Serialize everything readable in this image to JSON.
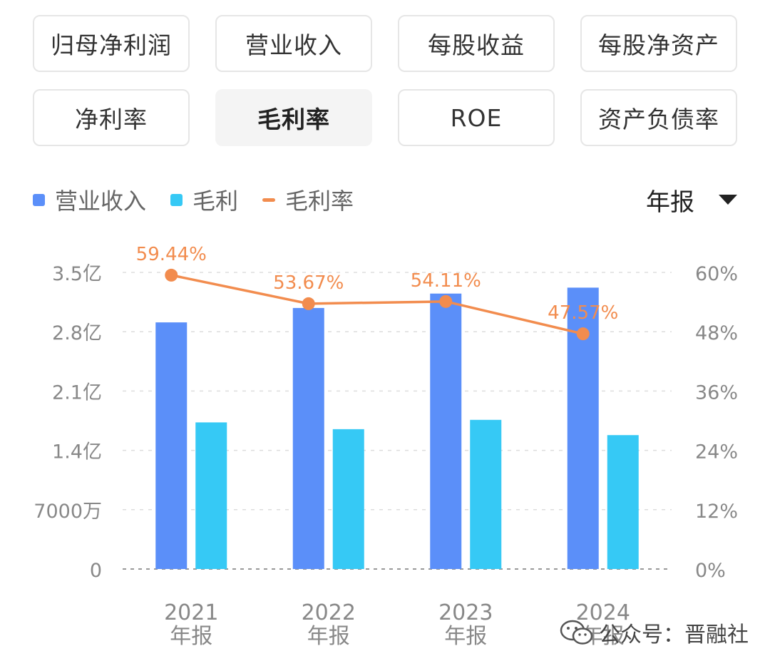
{
  "tabs": [
    {
      "label": "归母净利润",
      "active": false
    },
    {
      "label": "营业收入",
      "active": false
    },
    {
      "label": "每股收益",
      "active": false
    },
    {
      "label": "每股净资产",
      "active": false
    },
    {
      "label": "净利率",
      "active": false
    },
    {
      "label": "毛利率",
      "active": true
    },
    {
      "label": "ROE",
      "active": false
    },
    {
      "label": "资产负债率",
      "active": false
    }
  ],
  "period_selector": {
    "label": "年报",
    "icon": "caret-down-icon"
  },
  "watermark": {
    "text": "公众号：晋融社",
    "icon": "wechat-icon"
  },
  "colors": {
    "revenue": "#5b8ff9",
    "gross_profit": "#36c9f5",
    "gross_margin": "#f28c4e",
    "axis_text": "#888888",
    "grid": "#dddddd"
  },
  "chart_data": {
    "type": "bar",
    "categories": [
      {
        "year": "2021",
        "period": "年报"
      },
      {
        "year": "2022",
        "period": "年报"
      },
      {
        "year": "2023",
        "period": "年报"
      },
      {
        "year": "2024",
        "period": "年报"
      }
    ],
    "series": [
      {
        "name": "营业收入",
        "type": "bar",
        "axis": "left",
        "unit": "亿",
        "values": [
          2.91,
          3.08,
          3.25,
          3.32
        ]
      },
      {
        "name": "毛利",
        "type": "bar",
        "axis": "left",
        "unit": "亿",
        "values": [
          1.73,
          1.65,
          1.76,
          1.58
        ]
      },
      {
        "name": "毛利率",
        "type": "line",
        "axis": "right",
        "unit": "%",
        "values": [
          59.44,
          53.67,
          54.11,
          47.57
        ],
        "labels": [
          "59.44%",
          "53.67%",
          "54.11%",
          "47.57%"
        ]
      }
    ],
    "y_left": {
      "ticks": [
        "0",
        "7000万",
        "1.4亿",
        "2.1亿",
        "2.8亿",
        "3.5亿"
      ],
      "values": [
        0,
        0.7,
        1.4,
        2.1,
        2.8,
        3.5
      ],
      "range": [
        0,
        3.5
      ]
    },
    "y_right": {
      "ticks": [
        "0%",
        "12%",
        "24%",
        "36%",
        "48%",
        "60%"
      ],
      "values": [
        0,
        12,
        24,
        36,
        48,
        60
      ],
      "range": [
        0,
        60
      ]
    },
    "legend": "top-left",
    "grid": true
  }
}
